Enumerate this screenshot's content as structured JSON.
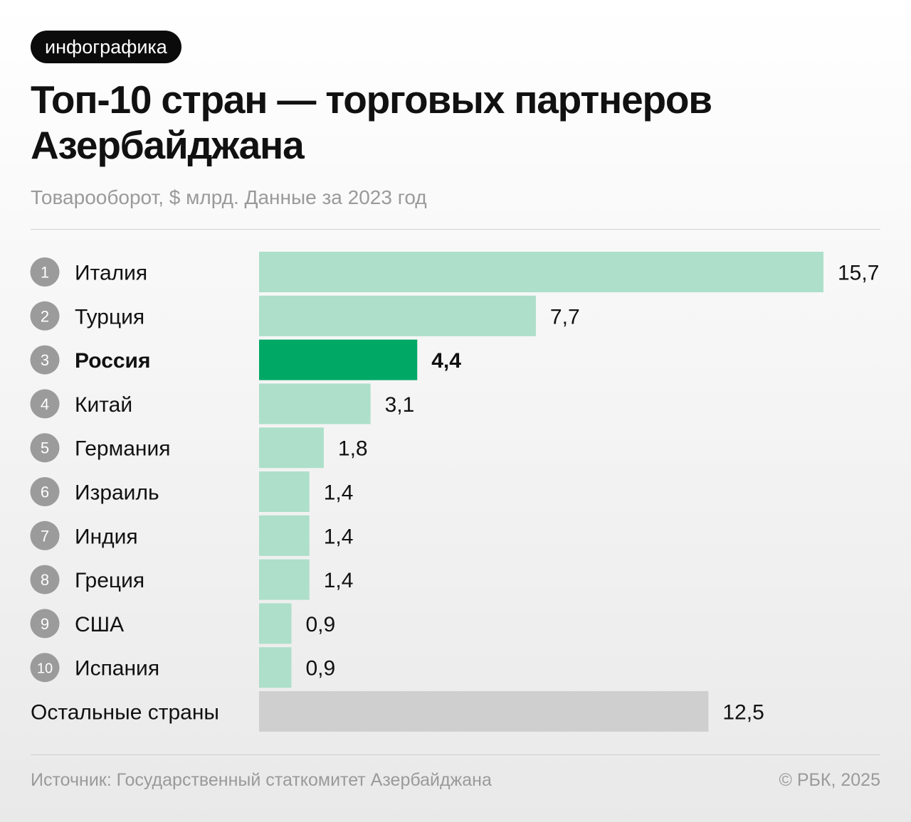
{
  "badge": "инфографика",
  "title": "Топ-10 стран — торговых партнеров Азербайджана",
  "subtitle": "Товарооборот, $ млрд. Данные за 2023 год",
  "footer": {
    "source": "Источник: Государственный статкомитет Азербайджана",
    "copyright": "© РБК, 2025"
  },
  "colors": {
    "bar": "#addfca",
    "highlight": "#00a866",
    "other": "#cfcfcf",
    "rank_circle": "#9b9b9b"
  },
  "chart_data": {
    "type": "bar",
    "orientation": "horizontal",
    "title": "Топ-10 стран — торговых партнеров Азербайджана",
    "subtitle": "Товарооборот, $ млрд. Данные за 2023 год",
    "categories": [
      "Италия",
      "Турция",
      "Россия",
      "Китай",
      "Германия",
      "Израиль",
      "Индия",
      "Греция",
      "США",
      "Испания",
      "Остальные страны"
    ],
    "ranks": [
      "1",
      "2",
      "3",
      "4",
      "5",
      "6",
      "7",
      "8",
      "9",
      "10",
      ""
    ],
    "values": [
      15.7,
      7.7,
      4.4,
      3.1,
      1.8,
      1.4,
      1.4,
      1.4,
      0.9,
      0.9,
      12.5
    ],
    "value_labels": [
      "15,7",
      "7,7",
      "4,4",
      "3,1",
      "1,8",
      "1,4",
      "1,4",
      "1,4",
      "0,9",
      "0,9",
      "12,5"
    ],
    "highlight": "Россия",
    "xlim": [
      0,
      15.7
    ],
    "grid": false,
    "legend": "none"
  }
}
